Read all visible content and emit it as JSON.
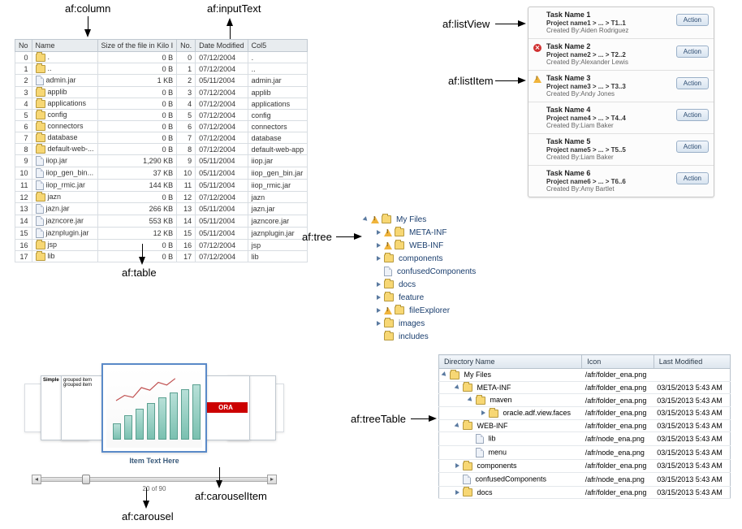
{
  "labels": {
    "af_column": "af:column",
    "af_inputText": "af:inputText",
    "af_table": "af:table",
    "af_tree": "af:tree",
    "af_listView": "af:listView",
    "af_listItem": "af:listItem",
    "af_treeTable": "af:treeTable",
    "af_carousel": "af:carousel",
    "af_carouselItem": "af:carouselItem"
  },
  "table": {
    "headers": [
      "No",
      "Name",
      "Size of the file in Kilo I",
      "No.",
      "Date Modified",
      "Col5"
    ],
    "rows": [
      {
        "no": "0",
        "name": ".",
        "size": "0 B",
        "no2": "0",
        "date": "07/12/2004",
        "col5": "."
      },
      {
        "no": "1",
        "name": "..",
        "size": "0 B",
        "no2": "1",
        "date": "07/12/2004",
        "col5": ".."
      },
      {
        "no": "2",
        "name": "admin.jar",
        "size": "1 KB",
        "no2": "2",
        "date": "05/11/2004",
        "col5": "admin.jar"
      },
      {
        "no": "3",
        "name": "applib",
        "size": "0 B",
        "no2": "3",
        "date": "07/12/2004",
        "col5": "applib"
      },
      {
        "no": "4",
        "name": "applications",
        "size": "0 B",
        "no2": "4",
        "date": "07/12/2004",
        "col5": "applications"
      },
      {
        "no": "5",
        "name": "config",
        "size": "0 B",
        "no2": "5",
        "date": "07/12/2004",
        "col5": "config"
      },
      {
        "no": "6",
        "name": "connectors",
        "size": "0 B",
        "no2": "6",
        "date": "07/12/2004",
        "col5": "connectors"
      },
      {
        "no": "7",
        "name": "database",
        "size": "0 B",
        "no2": "7",
        "date": "07/12/2004",
        "col5": "database"
      },
      {
        "no": "8",
        "name": "default-web-...",
        "size": "0 B",
        "no2": "8",
        "date": "07/12/2004",
        "col5": "default-web-app"
      },
      {
        "no": "9",
        "name": "iiop.jar",
        "size": "1,290 KB",
        "no2": "9",
        "date": "05/11/2004",
        "col5": "iiop.jar"
      },
      {
        "no": "10",
        "name": "iiop_gen_bin...",
        "size": "37 KB",
        "no2": "10",
        "date": "05/11/2004",
        "col5": "iiop_gen_bin.jar"
      },
      {
        "no": "11",
        "name": "iiop_rmic.jar",
        "size": "144 KB",
        "no2": "11",
        "date": "05/11/2004",
        "col5": "iiop_rmic.jar"
      },
      {
        "no": "12",
        "name": "jazn",
        "size": "0 B",
        "no2": "12",
        "date": "07/12/2004",
        "col5": "jazn"
      },
      {
        "no": "13",
        "name": "jazn.jar",
        "size": "266 KB",
        "no2": "13",
        "date": "05/11/2004",
        "col5": "jazn.jar"
      },
      {
        "no": "14",
        "name": "jazncore.jar",
        "size": "553 KB",
        "no2": "14",
        "date": "05/11/2004",
        "col5": "jazncore.jar"
      },
      {
        "no": "15",
        "name": "jaznplugin.jar",
        "size": "12 KB",
        "no2": "15",
        "date": "05/11/2004",
        "col5": "jaznplugin.jar"
      },
      {
        "no": "16",
        "name": "jsp",
        "size": "0 B",
        "no2": "16",
        "date": "07/12/2004",
        "col5": "jsp"
      },
      {
        "no": "17",
        "name": "lib",
        "size": "0 B",
        "no2": "17",
        "date": "07/12/2004",
        "col5": "lib"
      }
    ],
    "folder_rows": [
      0,
      1,
      3,
      4,
      5,
      6,
      7,
      8,
      12,
      16,
      17
    ],
    "file_rows": [
      2,
      9,
      10,
      11,
      13,
      14,
      15
    ]
  },
  "tree": {
    "items": [
      {
        "indent": 0,
        "open": true,
        "warn": true,
        "icon": "folder",
        "label": "My Files"
      },
      {
        "indent": 1,
        "open": false,
        "warn": true,
        "icon": "folder",
        "label": "META-INF"
      },
      {
        "indent": 1,
        "open": false,
        "warn": true,
        "icon": "folder",
        "label": "WEB-INF"
      },
      {
        "indent": 1,
        "open": false,
        "warn": false,
        "icon": "folder",
        "label": "components"
      },
      {
        "indent": 1,
        "open": false,
        "warn": false,
        "icon": "file",
        "label": "confusedComponents",
        "notw": true
      },
      {
        "indent": 1,
        "open": false,
        "warn": false,
        "icon": "folder",
        "label": "docs"
      },
      {
        "indent": 1,
        "open": false,
        "warn": false,
        "icon": "folder",
        "label": "feature"
      },
      {
        "indent": 1,
        "open": false,
        "warn": true,
        "icon": "folder",
        "label": "fileExplorer"
      },
      {
        "indent": 1,
        "open": false,
        "warn": false,
        "icon": "folder",
        "label": "images"
      },
      {
        "indent": 1,
        "open": false,
        "warn": false,
        "icon": "folder",
        "label": "includes",
        "notw": true
      }
    ]
  },
  "listview": {
    "action_label": "Action",
    "items": [
      {
        "title": "Task Name 1",
        "sub": "Project name1 > ... > T1..1",
        "by": "Created By:Aiden Rodriguez",
        "status": ""
      },
      {
        "title": "Task Name 2",
        "sub": "Project name2 > ... > T2..2",
        "by": "Created By:Alexander Lewis",
        "status": "error"
      },
      {
        "title": "Task Name 3",
        "sub": "Project name3 > ... > T3..3",
        "by": "Created By:Andy Jones",
        "status": "warn"
      },
      {
        "title": "Task Name 4",
        "sub": "Project name4 > ... > T4..4",
        "by": "Created By:Liam Baker",
        "status": ""
      },
      {
        "title": "Task Name 5",
        "sub": "Project name5 > ... > T5..5",
        "by": "Created By:Liam Baker",
        "status": ""
      },
      {
        "title": "Task Name 6",
        "sub": "Project name6 > ... > T6..6",
        "by": "Created By:Amy Bartlet",
        "status": ""
      }
    ]
  },
  "treetable": {
    "headers": [
      "Directory Name",
      "Icon",
      "Last Modified"
    ],
    "rows": [
      {
        "indent": 0,
        "open": true,
        "icon": "folder",
        "name": "My Files",
        "path": "/afr/folder_ena.png",
        "date": ""
      },
      {
        "indent": 1,
        "open": true,
        "icon": "folder",
        "name": "META-INF",
        "path": "/afr/folder_ena.png",
        "date": "03/15/2013 5:43 AM"
      },
      {
        "indent": 2,
        "open": true,
        "icon": "folder",
        "name": "maven",
        "path": "/afr/folder_ena.png",
        "date": "03/15/2013 5:43 AM"
      },
      {
        "indent": 3,
        "open": false,
        "icon": "folder",
        "name": "oracle.adf.view.faces",
        "path": "/afr/folder_ena.png",
        "date": "03/15/2013 5:43 AM"
      },
      {
        "indent": 1,
        "open": true,
        "icon": "folder",
        "name": "WEB-INF",
        "path": "/afr/folder_ena.png",
        "date": "03/15/2013 5:43 AM"
      },
      {
        "indent": 2,
        "open": false,
        "icon": "file",
        "name": "lib",
        "path": "/afr/node_ena.png",
        "date": "03/15/2013 5:43 AM",
        "notw": true
      },
      {
        "indent": 2,
        "open": false,
        "icon": "file",
        "name": "menu",
        "path": "/afr/node_ena.png",
        "date": "03/15/2013 5:43 AM",
        "notw": true
      },
      {
        "indent": 1,
        "open": false,
        "icon": "folder",
        "name": "components",
        "path": "/afr/folder_ena.png",
        "date": "03/15/2013 5:43 AM"
      },
      {
        "indent": 1,
        "open": false,
        "icon": "file",
        "name": "confusedComponents",
        "path": "/afr/node_ena.png",
        "date": "03/15/2013 5:43 AM",
        "notw": true
      },
      {
        "indent": 1,
        "open": false,
        "icon": "folder",
        "name": "docs",
        "path": "/afr/folder_ena.png",
        "date": "03/15/2013 5:43 AM"
      }
    ]
  },
  "carousel": {
    "center_label": "Item Text Here",
    "position": "20 of 90",
    "bars": [
      20,
      30,
      38,
      45,
      52,
      58,
      62,
      68
    ],
    "line_points": [
      [
        5,
        40
      ],
      [
        18,
        32
      ],
      [
        31,
        35
      ],
      [
        44,
        20
      ],
      [
        57,
        24
      ],
      [
        70,
        12
      ],
      [
        83,
        16
      ],
      [
        96,
        6
      ]
    ],
    "bar_color": "#7ac0b0",
    "line_color": "#c05050",
    "side_text_left": [
      "grouped item",
      "grouped item"
    ],
    "side_bold_left": "Simple",
    "side_right_text": "ORA"
  }
}
